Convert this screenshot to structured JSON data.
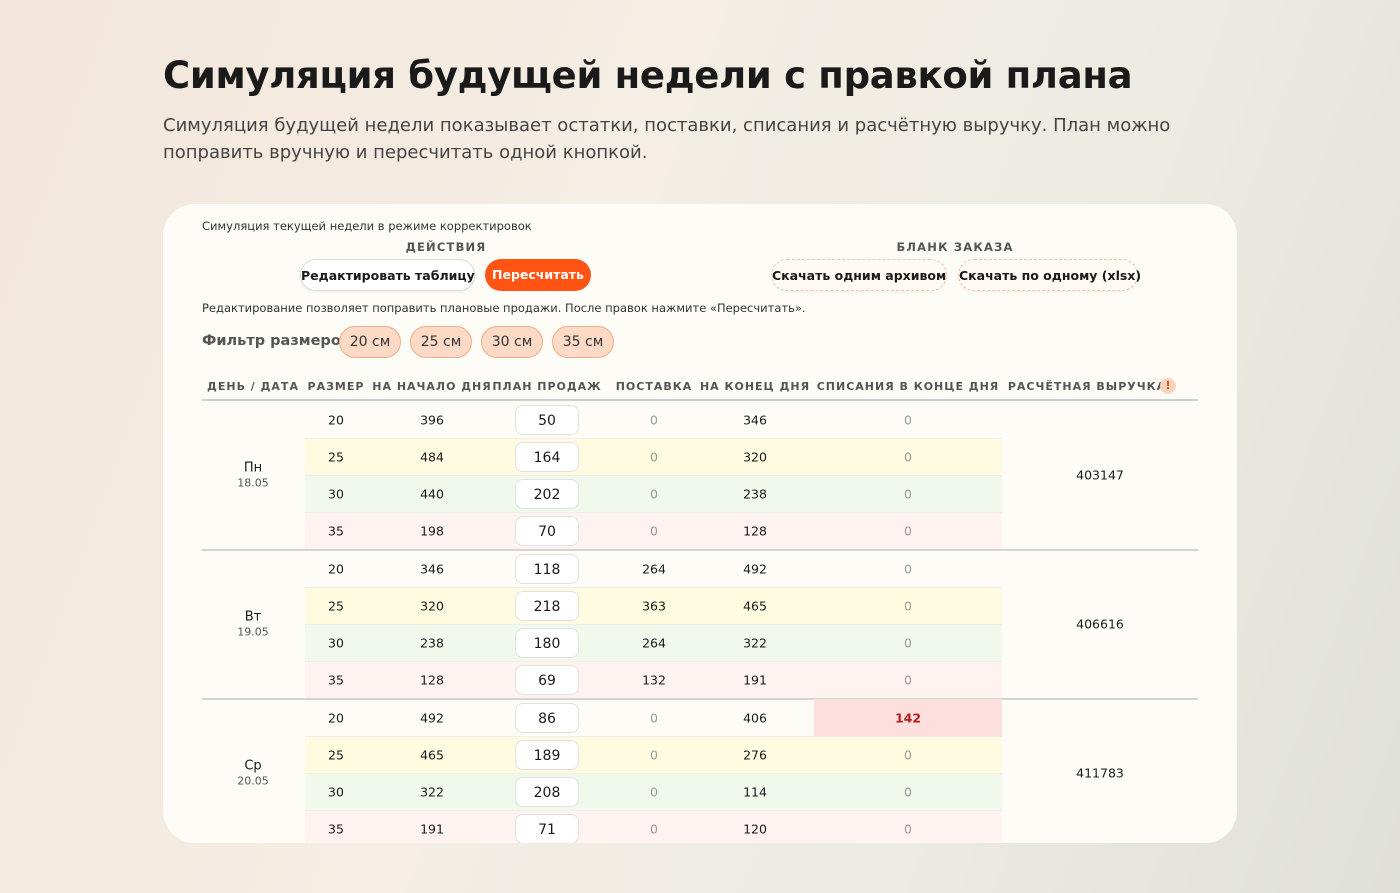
{
  "header": {
    "title": "Симуляция будущей недели с правкой плана",
    "subtitle": "Симуляция будущей недели показывает остатки, поставки, списания и расчётную выручку. План можно поправить вручную и пересчитать одной кнопкой."
  },
  "panel": {
    "caption": "Симуляция текущей недели в режиме корректировок",
    "actions": {
      "title": "ДЕЙСТВИЯ",
      "buttons": [
        "Редактировать таблицу",
        "Пересчитать"
      ]
    },
    "order": {
      "title": "БЛАНК ЗАКАЗА",
      "buttons": [
        "Скачать одним архивом",
        "Скачать по одному (xlsx)"
      ]
    },
    "hint": "Редактирование позволяет поправить плановые продажи. После правок нажмите «Пересчитать».",
    "filter": {
      "label": "Фильтр размеров:",
      "chips": [
        "20 см",
        "25 см",
        "30 см",
        "35 см"
      ]
    }
  },
  "table": {
    "columns": [
      "ДЕНЬ / ДАТА",
      "РАЗМЕР",
      "НА НАЧАЛО ДНЯ",
      "ПЛАН ПРОДАЖ",
      "ПОСТАВКА",
      "НА КОНЕЦ ДНЯ",
      "СПИСАНИЯ В КОНЦЕ ДНЯ",
      "РАСЧЁТНАЯ ВЫРУЧКА"
    ],
    "revenue_icon": "!",
    "days": [
      {
        "day": "Пн",
        "date": "18.05",
        "revenue": 403147,
        "rows": [
          [
            20,
            396,
            50,
            0,
            346,
            0
          ],
          [
            25,
            484,
            164,
            0,
            320,
            0
          ],
          [
            30,
            440,
            202,
            0,
            238,
            0
          ],
          [
            35,
            198,
            70,
            0,
            128,
            0
          ]
        ]
      },
      {
        "day": "Вт",
        "date": "19.05",
        "revenue": 406616,
        "rows": [
          [
            20,
            346,
            118,
            264,
            492,
            0
          ],
          [
            25,
            320,
            218,
            363,
            465,
            0
          ],
          [
            30,
            238,
            180,
            264,
            322,
            0
          ],
          [
            35,
            128,
            69,
            132,
            191,
            0
          ]
        ]
      },
      {
        "day": "Ср",
        "date": "20.05",
        "revenue": 411783,
        "rows": [
          [
            20,
            492,
            86,
            0,
            406,
            142
          ],
          [
            25,
            465,
            189,
            0,
            276,
            0
          ],
          [
            30,
            322,
            208,
            0,
            114,
            0
          ],
          [
            35,
            191,
            71,
            0,
            120,
            0
          ]
        ]
      }
    ]
  }
}
